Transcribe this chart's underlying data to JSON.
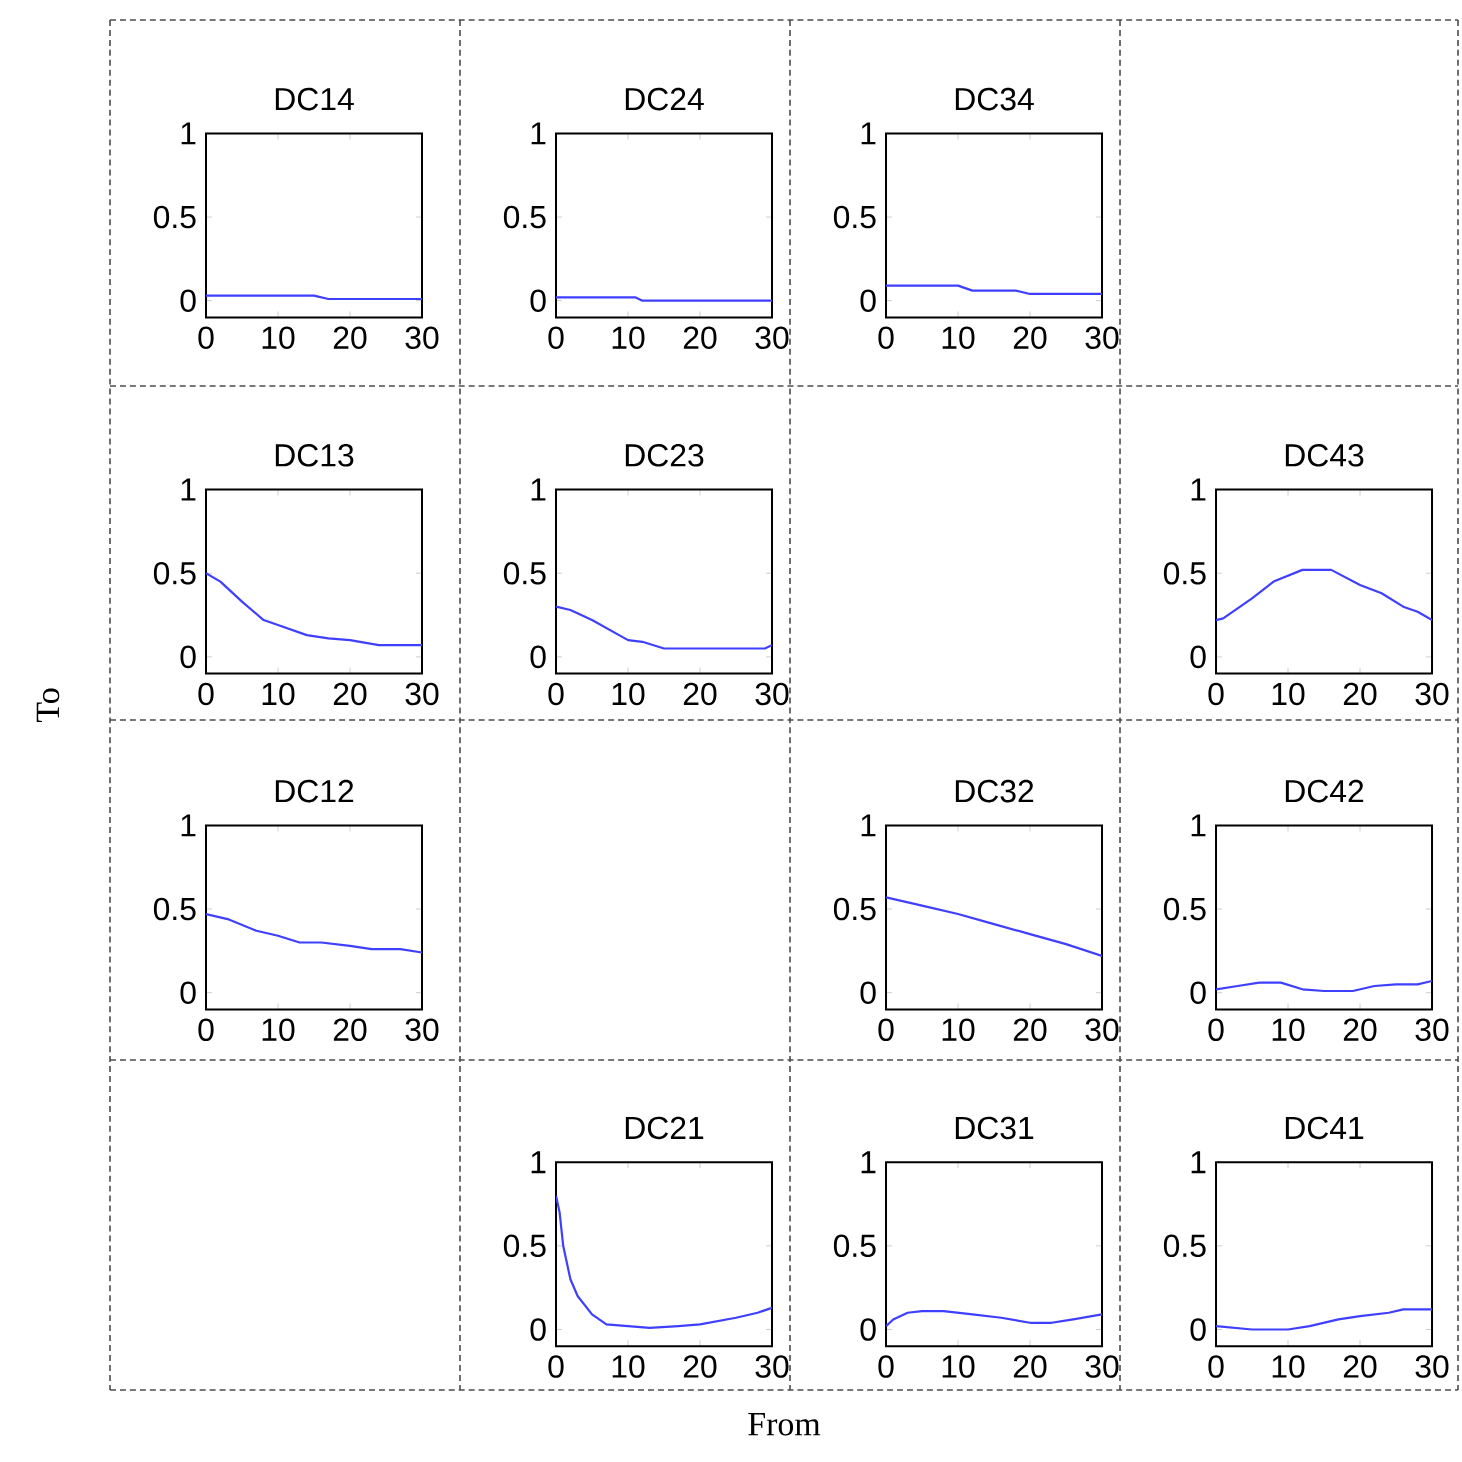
{
  "chart_data": [
    {
      "type": "line",
      "title": "DC14",
      "x": [
        0,
        5,
        10,
        15,
        17,
        20,
        25,
        30
      ],
      "values": [
        0.03,
        0.03,
        0.03,
        0.03,
        0.01,
        0.01,
        0.01,
        0.01
      ],
      "color": "#3f3fff",
      "xlim": [
        0,
        30
      ],
      "ylim": [
        -0.1,
        1
      ],
      "xticks": [
        0,
        10,
        20,
        30
      ],
      "yticks": [
        0,
        0.5,
        1
      ]
    },
    {
      "type": "line",
      "title": "DC24",
      "x": [
        0,
        5,
        11,
        12,
        20,
        30
      ],
      "values": [
        0.02,
        0.02,
        0.02,
        0.0,
        0.0,
        0.0
      ],
      "color": "#3f3fff",
      "xlim": [
        0,
        30
      ],
      "ylim": [
        -0.1,
        1
      ],
      "xticks": [
        0,
        10,
        20,
        30
      ],
      "yticks": [
        0,
        0.5,
        1
      ]
    },
    {
      "type": "line",
      "title": "DC34",
      "x": [
        0,
        10,
        12,
        18,
        20,
        30
      ],
      "values": [
        0.09,
        0.09,
        0.06,
        0.06,
        0.04,
        0.04
      ],
      "color": "#3f3fff",
      "xlim": [
        0,
        30
      ],
      "ylim": [
        -0.1,
        1
      ],
      "xticks": [
        0,
        10,
        20,
        30
      ],
      "yticks": [
        0,
        0.5,
        1
      ]
    },
    {
      "type": "line",
      "title": "DC13",
      "x": [
        0,
        2,
        5,
        8,
        10,
        14,
        17,
        20,
        24,
        30
      ],
      "values": [
        0.5,
        0.45,
        0.33,
        0.22,
        0.19,
        0.13,
        0.11,
        0.1,
        0.07,
        0.07
      ],
      "color": "#3f3fff",
      "xlim": [
        0,
        30
      ],
      "ylim": [
        -0.1,
        1
      ],
      "xticks": [
        0,
        10,
        20,
        30
      ],
      "yticks": [
        0,
        0.5,
        1
      ]
    },
    {
      "type": "line",
      "title": "DC23",
      "x": [
        0,
        2,
        5,
        10,
        12,
        15,
        20,
        29,
        30
      ],
      "values": [
        0.3,
        0.28,
        0.22,
        0.1,
        0.09,
        0.05,
        0.05,
        0.05,
        0.07
      ],
      "color": "#3f3fff",
      "xlim": [
        0,
        30
      ],
      "ylim": [
        -0.1,
        1
      ],
      "xticks": [
        0,
        10,
        20,
        30
      ],
      "yticks": [
        0,
        0.5,
        1
      ]
    },
    {
      "type": "line",
      "title": "DC43",
      "x": [
        0,
        1,
        5,
        8,
        12,
        16,
        20,
        23,
        26,
        28,
        30
      ],
      "values": [
        0.22,
        0.23,
        0.35,
        0.45,
        0.52,
        0.52,
        0.43,
        0.38,
        0.3,
        0.27,
        0.22
      ],
      "color": "#3f3fff",
      "xlim": [
        0,
        30
      ],
      "ylim": [
        -0.1,
        1
      ],
      "xticks": [
        0,
        10,
        20,
        30
      ],
      "yticks": [
        0,
        0.5,
        1
      ]
    },
    {
      "type": "line",
      "title": "DC12",
      "x": [
        0,
        3,
        7,
        10,
        13,
        16,
        20,
        23,
        27,
        30
      ],
      "values": [
        0.47,
        0.44,
        0.37,
        0.34,
        0.3,
        0.3,
        0.28,
        0.26,
        0.26,
        0.24
      ],
      "color": "#3f3fff",
      "xlim": [
        0,
        30
      ],
      "ylim": [
        -0.1,
        1
      ],
      "xticks": [
        0,
        10,
        20,
        30
      ],
      "yticks": [
        0,
        0.5,
        1
      ]
    },
    {
      "type": "line",
      "title": "DC32",
      "x": [
        0,
        5,
        10,
        15,
        20,
        25,
        30
      ],
      "values": [
        0.57,
        0.52,
        0.47,
        0.41,
        0.35,
        0.29,
        0.22
      ],
      "color": "#3f3fff",
      "xlim": [
        0,
        30
      ],
      "ylim": [
        -0.1,
        1
      ],
      "xticks": [
        0,
        10,
        20,
        30
      ],
      "yticks": [
        0,
        0.5,
        1
      ]
    },
    {
      "type": "line",
      "title": "DC42",
      "x": [
        0,
        3,
        6,
        9,
        12,
        15,
        19,
        22,
        25,
        28,
        30
      ],
      "values": [
        0.02,
        0.04,
        0.06,
        0.06,
        0.02,
        0.01,
        0.01,
        0.04,
        0.05,
        0.05,
        0.07
      ],
      "color": "#3f3fff",
      "xlim": [
        0,
        30
      ],
      "ylim": [
        -0.1,
        1
      ],
      "xticks": [
        0,
        10,
        20,
        30
      ],
      "yticks": [
        0,
        0.5,
        1
      ]
    },
    {
      "type": "line",
      "title": "DC21",
      "x": [
        0,
        0.5,
        1,
        2,
        3,
        5,
        7,
        10,
        13,
        17,
        20,
        25,
        28,
        30
      ],
      "values": [
        0.8,
        0.7,
        0.5,
        0.3,
        0.2,
        0.09,
        0.03,
        0.02,
        0.01,
        0.02,
        0.03,
        0.07,
        0.1,
        0.13
      ],
      "color": "#3f3fff",
      "xlim": [
        0,
        30
      ],
      "ylim": [
        -0.1,
        1
      ],
      "xticks": [
        0,
        10,
        20,
        30
      ],
      "yticks": [
        0,
        0.5,
        1
      ]
    },
    {
      "type": "line",
      "title": "DC31",
      "x": [
        0,
        1,
        3,
        5,
        8,
        12,
        16,
        20,
        23,
        26,
        30
      ],
      "values": [
        0.02,
        0.06,
        0.1,
        0.11,
        0.11,
        0.09,
        0.07,
        0.04,
        0.04,
        0.06,
        0.09
      ],
      "color": "#3f3fff",
      "xlim": [
        0,
        30
      ],
      "ylim": [
        -0.1,
        1
      ],
      "xticks": [
        0,
        10,
        20,
        30
      ],
      "yticks": [
        0,
        0.5,
        1
      ]
    },
    {
      "type": "line",
      "title": "DC41",
      "x": [
        0,
        5,
        10,
        13,
        17,
        20,
        24,
        26,
        30
      ],
      "values": [
        0.02,
        0.0,
        0.0,
        0.02,
        0.06,
        0.08,
        0.1,
        0.12,
        0.12
      ],
      "color": "#3f3fff",
      "xlim": [
        0,
        30
      ],
      "ylim": [
        -0.1,
        1
      ],
      "xticks": [
        0,
        10,
        20,
        30
      ],
      "yticks": [
        0,
        0.5,
        1
      ]
    },
    {
      "type": "other",
      "xlabel": "From",
      "ylabel": "To"
    }
  ]
}
